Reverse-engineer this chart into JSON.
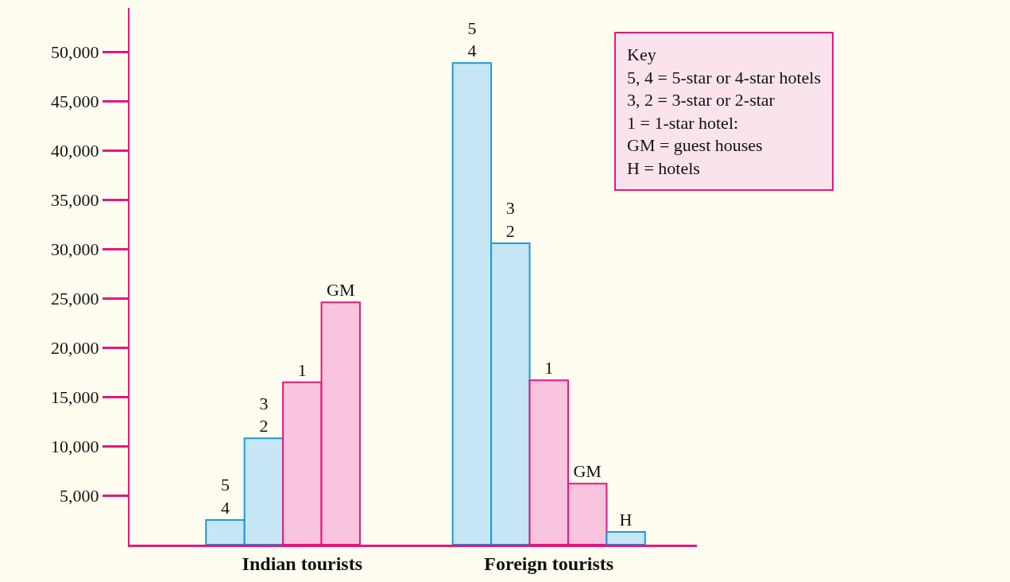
{
  "chart_data": {
    "type": "bar",
    "categories": [
      "Indian tourists",
      "Foreign tourists"
    ],
    "series": [
      {
        "name": "5\n4",
        "color": "#1b9ad6",
        "values": [
          2500,
          48900
        ]
      },
      {
        "name": "3\n2",
        "color": "#1b9ad6",
        "values": [
          10800,
          30600
        ]
      },
      {
        "name": "1",
        "color": "#e6177d",
        "values": [
          16500,
          16700
        ]
      },
      {
        "name": "GM",
        "color": "#e6177d",
        "values": [
          24600,
          6200
        ]
      },
      {
        "name": "H",
        "color": "#1b9ad6",
        "values": [
          null,
          1300
        ]
      }
    ],
    "ylim": [
      0,
      54500
    ],
    "yticks": [
      {
        "value": 5000,
        "label": "5,000"
      },
      {
        "value": 10000,
        "label": "10,000"
      },
      {
        "value": 15000,
        "label": "15,000"
      },
      {
        "value": 20000,
        "label": "20,000"
      },
      {
        "value": 25000,
        "label": "25,000"
      },
      {
        "value": 30000,
        "label": "30,000"
      },
      {
        "value": 35000,
        "label": "35,000"
      },
      {
        "value": 40000,
        "label": "40,000"
      },
      {
        "value": 45000,
        "label": "45,000"
      },
      {
        "value": 50000,
        "label": "50,000"
      }
    ],
    "annotations": [
      "Key\n5, 4 = 5-star or 4-star hotels\n3, 2 = 3-star or 2-star\n1 = 1-star hotel:\nGM = guest houses\nH = hotels"
    ],
    "grid": false,
    "legend": false
  }
}
